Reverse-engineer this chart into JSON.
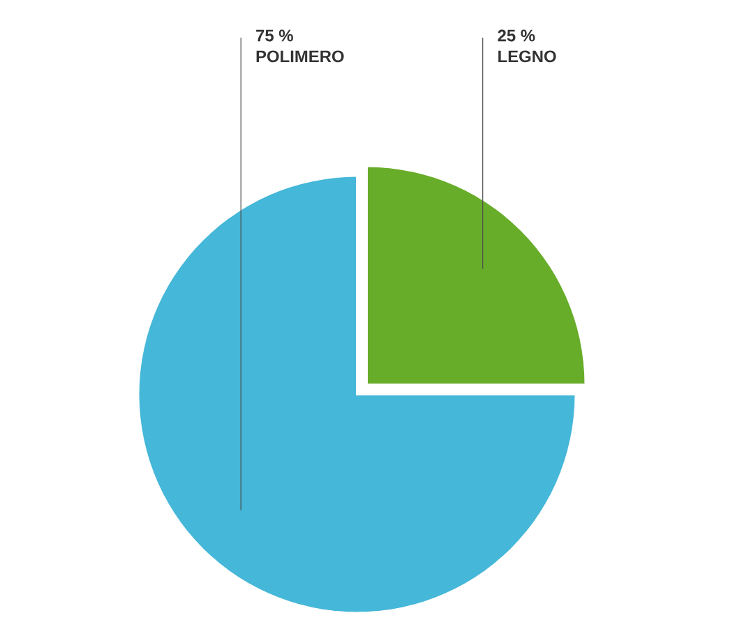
{
  "chart_data": {
    "type": "pie",
    "categories": [
      "POLIMERO",
      "LEGNO"
    ],
    "values": [
      75,
      25
    ],
    "colors": [
      "#45b7d8",
      "#67ad2a"
    ],
    "value_labels": [
      "75 %",
      "25 %"
    ]
  }
}
